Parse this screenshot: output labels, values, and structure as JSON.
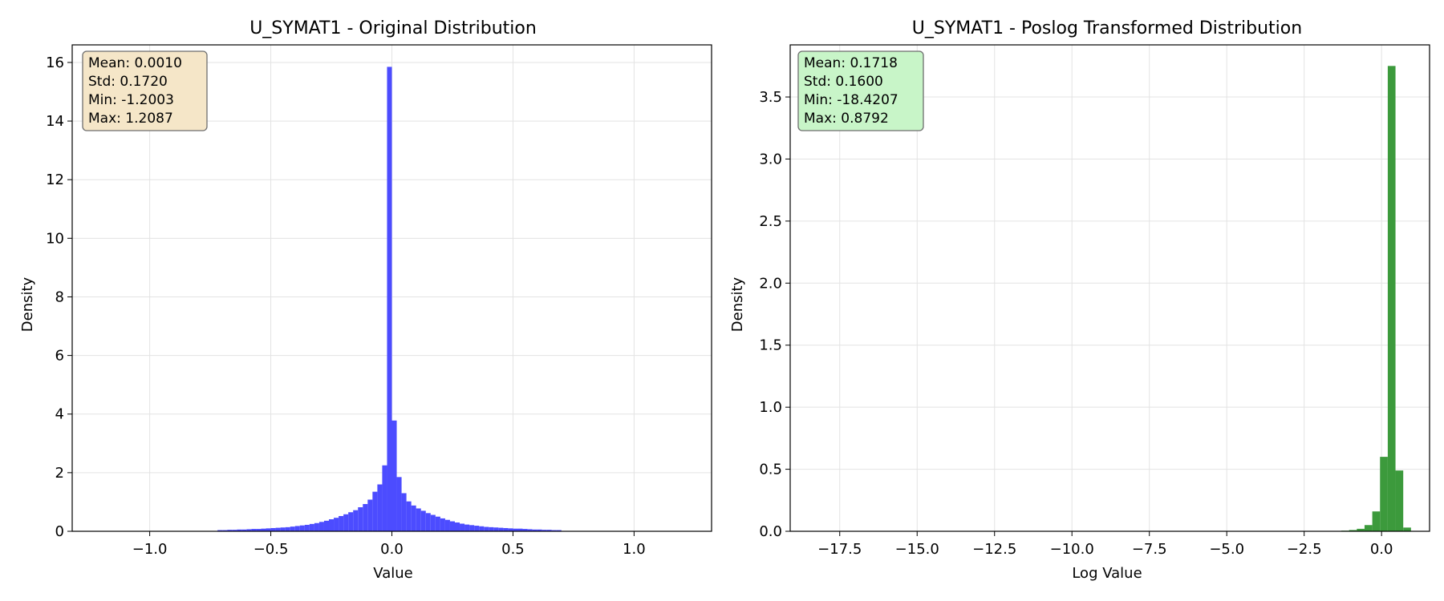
{
  "chart_data": [
    {
      "type": "histogram",
      "title": "U_SYMAT1 - Original Distribution",
      "xlabel": "Value",
      "ylabel": "Density",
      "xlim": [
        -1.32,
        1.32
      ],
      "ylim": [
        0,
        16.6
      ],
      "xticks": [
        "−1.0",
        "−0.5",
        "0.0",
        "0.5",
        "1.0"
      ],
      "xtick_values": [
        -1.0,
        -0.5,
        0.0,
        0.5,
        1.0
      ],
      "yticks": [
        "0",
        "2",
        "4",
        "6",
        "8",
        "10",
        "12",
        "14",
        "16"
      ],
      "ytick_values": [
        0,
        2,
        4,
        6,
        8,
        10,
        12,
        14,
        16
      ],
      "grid": true,
      "bar_color": "#4c4cff",
      "stats_box_color": "#f5e6c8",
      "stats": [
        "Mean: 0.0010",
        "Std: 0.1720",
        "Min: -1.2003",
        "Max: 1.2087"
      ],
      "bins": [
        {
          "x0": -0.72,
          "x1": -0.7,
          "y": 0.04
        },
        {
          "x0": -0.7,
          "x1": -0.68,
          "y": 0.04
        },
        {
          "x0": -0.68,
          "x1": -0.66,
          "y": 0.05
        },
        {
          "x0": -0.66,
          "x1": -0.64,
          "y": 0.05
        },
        {
          "x0": -0.64,
          "x1": -0.62,
          "y": 0.06
        },
        {
          "x0": -0.62,
          "x1": -0.6,
          "y": 0.06
        },
        {
          "x0": -0.6,
          "x1": -0.58,
          "y": 0.07
        },
        {
          "x0": -0.58,
          "x1": -0.56,
          "y": 0.08
        },
        {
          "x0": -0.56,
          "x1": -0.54,
          "y": 0.08
        },
        {
          "x0": -0.54,
          "x1": -0.52,
          "y": 0.09
        },
        {
          "x0": -0.52,
          "x1": -0.5,
          "y": 0.1
        },
        {
          "x0": -0.5,
          "x1": -0.48,
          "y": 0.11
        },
        {
          "x0": -0.48,
          "x1": -0.46,
          "y": 0.12
        },
        {
          "x0": -0.46,
          "x1": -0.44,
          "y": 0.13
        },
        {
          "x0": -0.44,
          "x1": -0.42,
          "y": 0.14
        },
        {
          "x0": -0.42,
          "x1": -0.4,
          "y": 0.16
        },
        {
          "x0": -0.4,
          "x1": -0.38,
          "y": 0.18
        },
        {
          "x0": -0.38,
          "x1": -0.36,
          "y": 0.2
        },
        {
          "x0": -0.36,
          "x1": -0.34,
          "y": 0.22
        },
        {
          "x0": -0.34,
          "x1": -0.32,
          "y": 0.25
        },
        {
          "x0": -0.32,
          "x1": -0.3,
          "y": 0.28
        },
        {
          "x0": -0.3,
          "x1": -0.28,
          "y": 0.32
        },
        {
          "x0": -0.28,
          "x1": -0.26,
          "y": 0.36
        },
        {
          "x0": -0.26,
          "x1": -0.24,
          "y": 0.41
        },
        {
          "x0": -0.24,
          "x1": -0.22,
          "y": 0.46
        },
        {
          "x0": -0.22,
          "x1": -0.2,
          "y": 0.52
        },
        {
          "x0": -0.2,
          "x1": -0.18,
          "y": 0.58
        },
        {
          "x0": -0.18,
          "x1": -0.16,
          "y": 0.65
        },
        {
          "x0": -0.16,
          "x1": -0.14,
          "y": 0.72
        },
        {
          "x0": -0.14,
          "x1": -0.12,
          "y": 0.82
        },
        {
          "x0": -0.12,
          "x1": -0.1,
          "y": 0.93
        },
        {
          "x0": -0.1,
          "x1": -0.08,
          "y": 1.08
        },
        {
          "x0": -0.08,
          "x1": -0.06,
          "y": 1.35
        },
        {
          "x0": -0.06,
          "x1": -0.04,
          "y": 1.6
        },
        {
          "x0": -0.04,
          "x1": -0.02,
          "y": 2.25
        },
        {
          "x0": -0.02,
          "x1": 0.0,
          "y": 15.85
        },
        {
          "x0": 0.0,
          "x1": 0.02,
          "y": 3.78
        },
        {
          "x0": 0.02,
          "x1": 0.04,
          "y": 1.85
        },
        {
          "x0": 0.04,
          "x1": 0.06,
          "y": 1.3
        },
        {
          "x0": 0.06,
          "x1": 0.08,
          "y": 1.02
        },
        {
          "x0": 0.08,
          "x1": 0.1,
          "y": 0.88
        },
        {
          "x0": 0.1,
          "x1": 0.12,
          "y": 0.78
        },
        {
          "x0": 0.12,
          "x1": 0.14,
          "y": 0.7
        },
        {
          "x0": 0.14,
          "x1": 0.16,
          "y": 0.62
        },
        {
          "x0": 0.16,
          "x1": 0.18,
          "y": 0.56
        },
        {
          "x0": 0.18,
          "x1": 0.2,
          "y": 0.5
        },
        {
          "x0": 0.2,
          "x1": 0.22,
          "y": 0.44
        },
        {
          "x0": 0.22,
          "x1": 0.24,
          "y": 0.39
        },
        {
          "x0": 0.24,
          "x1": 0.26,
          "y": 0.34
        },
        {
          "x0": 0.26,
          "x1": 0.28,
          "y": 0.3
        },
        {
          "x0": 0.28,
          "x1": 0.3,
          "y": 0.26
        },
        {
          "x0": 0.3,
          "x1": 0.32,
          "y": 0.23
        },
        {
          "x0": 0.32,
          "x1": 0.34,
          "y": 0.21
        },
        {
          "x0": 0.34,
          "x1": 0.36,
          "y": 0.19
        },
        {
          "x0": 0.36,
          "x1": 0.38,
          "y": 0.17
        },
        {
          "x0": 0.38,
          "x1": 0.4,
          "y": 0.15
        },
        {
          "x0": 0.4,
          "x1": 0.42,
          "y": 0.14
        },
        {
          "x0": 0.42,
          "x1": 0.44,
          "y": 0.13
        },
        {
          "x0": 0.44,
          "x1": 0.46,
          "y": 0.12
        },
        {
          "x0": 0.46,
          "x1": 0.48,
          "y": 0.11
        },
        {
          "x0": 0.48,
          "x1": 0.5,
          "y": 0.1
        },
        {
          "x0": 0.5,
          "x1": 0.52,
          "y": 0.09
        },
        {
          "x0": 0.52,
          "x1": 0.54,
          "y": 0.09
        },
        {
          "x0": 0.54,
          "x1": 0.56,
          "y": 0.08
        },
        {
          "x0": 0.56,
          "x1": 0.58,
          "y": 0.07
        },
        {
          "x0": 0.58,
          "x1": 0.6,
          "y": 0.06
        },
        {
          "x0": 0.6,
          "x1": 0.62,
          "y": 0.06
        },
        {
          "x0": 0.62,
          "x1": 0.64,
          "y": 0.05
        },
        {
          "x0": 0.64,
          "x1": 0.66,
          "y": 0.05
        },
        {
          "x0": 0.66,
          "x1": 0.68,
          "y": 0.04
        },
        {
          "x0": 0.68,
          "x1": 0.7,
          "y": 0.04
        }
      ]
    },
    {
      "type": "histogram",
      "title": "U_SYMAT1 - Poslog Transformed Distribution",
      "xlabel": "Log Value",
      "ylabel": "Density",
      "xlim": [
        -19.1,
        1.55
      ],
      "ylim": [
        0,
        3.92
      ],
      "xticks": [
        "−17.5",
        "−15.0",
        "−12.5",
        "−10.0",
        "−7.5",
        "−5.0",
        "−2.5",
        "0.0"
      ],
      "xtick_values": [
        -17.5,
        -15.0,
        -12.5,
        -10.0,
        -7.5,
        -5.0,
        -2.5,
        0.0
      ],
      "yticks": [
        "0.0",
        "0.5",
        "1.0",
        "1.5",
        "2.0",
        "2.5",
        "3.0",
        "3.5"
      ],
      "ytick_values": [
        0.0,
        0.5,
        1.0,
        1.5,
        2.0,
        2.5,
        3.0,
        3.5
      ],
      "grid": true,
      "bar_color": "#3c9a3c",
      "stats_box_color": "#c8f5c8",
      "stats": [
        "Mean: 0.1718",
        "Std: 0.1600",
        "Min: -18.4207",
        "Max: 0.8792"
      ],
      "bins": [
        {
          "x0": -1.3,
          "x1": -1.05,
          "y": 0.005
        },
        {
          "x0": -1.05,
          "x1": -0.8,
          "y": 0.01
        },
        {
          "x0": -0.8,
          "x1": -0.55,
          "y": 0.02
        },
        {
          "x0": -0.55,
          "x1": -0.3,
          "y": 0.05
        },
        {
          "x0": -0.3,
          "x1": -0.05,
          "y": 0.16
        },
        {
          "x0": -0.05,
          "x1": 0.2,
          "y": 0.6
        },
        {
          "x0": 0.2,
          "x1": 0.45,
          "y": 3.75
        },
        {
          "x0": 0.45,
          "x1": 0.7,
          "y": 0.49
        },
        {
          "x0": 0.7,
          "x1": 0.95,
          "y": 0.03
        }
      ]
    }
  ]
}
